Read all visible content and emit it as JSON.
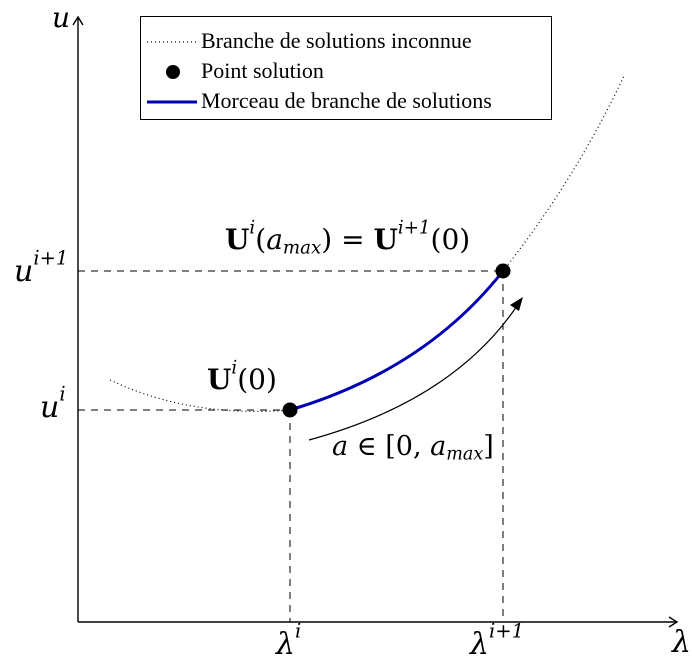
{
  "axes": {
    "y_label": "u",
    "x_label": "λ"
  },
  "ticks": {
    "u_i": {
      "base": "u",
      "sup": "i"
    },
    "u_i1": {
      "base": "u",
      "sup": "i+1"
    },
    "lambda_i": {
      "base": "λ",
      "sup": "i"
    },
    "lambda_i1": {
      "base": "λ",
      "sup": "i+1"
    }
  },
  "legend": {
    "items": [
      {
        "style": "dotted",
        "label": "Branche de solutions inconnue"
      },
      {
        "style": "point",
        "label": "Point solution"
      },
      {
        "style": "solid-blue",
        "label": "Morceau de branche de solutions"
      }
    ]
  },
  "annotations": {
    "start_point": {
      "bold": "U",
      "sup": "i",
      "rest": "(0)"
    },
    "end_point": {
      "left_bold": "U",
      "left_sup": "i",
      "left_open": "(",
      "left_arg": "a",
      "left_sub": "max",
      "left_close": ")",
      "equals": " = ",
      "right_bold": "U",
      "right_sup": "i+1",
      "right_rest": "(0)"
    },
    "arc_param": {
      "var": "a",
      "in": " ∈ [0, ",
      "amax": "a",
      "amax_sub": "max",
      "close": "]"
    }
  },
  "colors": {
    "branch": "#0000b3",
    "axis": "#000000",
    "point": "#000000"
  }
}
